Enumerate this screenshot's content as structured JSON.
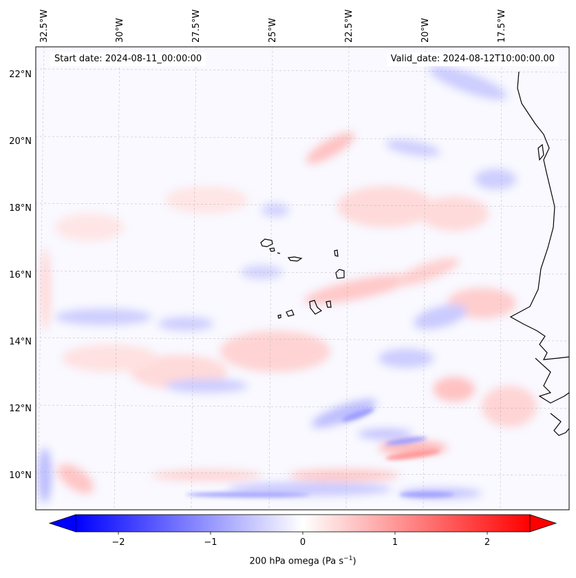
{
  "map": {
    "start_date_label": "Start date: 2024-08-11_00:00:00",
    "valid_date_label": "Valid_date: 2024-08-12T10:00:00.00",
    "lon_ticks": [
      "32.5°W",
      "30°W",
      "27.5°W",
      "25°W",
      "22.5°W",
      "20°W",
      "17.5°W"
    ],
    "lat_ticks": [
      "22°N",
      "20°N",
      "18°N",
      "16°N",
      "14°N",
      "12°N",
      "10°N"
    ],
    "projection": "lambert-conformal",
    "gridlines": true,
    "coastline_color": "#000000",
    "field": "200 hPa omega",
    "features": [
      "Cape Verde islands",
      "West African coastline"
    ]
  },
  "colorbar": {
    "label_main": "200 hPa omega (Pa s",
    "label_sup": "−1",
    "label_end": ")",
    "ticks": [
      "−2",
      "−1",
      "0",
      "1",
      "2"
    ],
    "min": -2.7,
    "max": 2.7,
    "colormap": "bwr",
    "low_color": "#0000ff",
    "mid_color": "#ffffff",
    "high_color": "#ff0000",
    "extend": "both"
  }
}
